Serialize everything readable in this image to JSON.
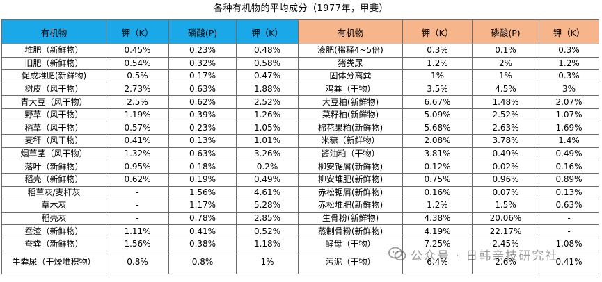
{
  "title": "各种有机物的平均成分（1977年，甲斐）",
  "headers": {
    "left": [
      "有机物",
      "钾（K）",
      "磷酸(P)",
      "钾（K）"
    ],
    "right": [
      "有机物",
      "钾（K）",
      "磷酸(P)",
      "钾（K）"
    ]
  },
  "rows": [
    {
      "l": [
        "堆肥（新鲜物）",
        "0.45%",
        "0.23%",
        "0.48%"
      ],
      "r": [
        "液肥(稀释4~5倍)",
        "0.3%",
        "0.1%",
        "0.3%"
      ]
    },
    {
      "l": [
        "旧肥（新鲜物）",
        "0.54%",
        "0.32%",
        "0.58%"
      ],
      "r": [
        "猪粪尿",
        "1.2%",
        "2%",
        "1.2%"
      ]
    },
    {
      "l": [
        "促成堆肥(新鲜物)",
        "0.5%",
        "0.17%",
        "0.47%"
      ],
      "r": [
        "固体分离粪",
        "1%",
        "1%",
        "0.3%"
      ]
    },
    {
      "l": [
        "树皮（风干物）",
        "2.73%",
        "0.63%",
        "1.88%"
      ],
      "r": [
        "鸡粪（干物）",
        "3.5%",
        "4.5%",
        "3%"
      ]
    },
    {
      "l": [
        "青大豆（风干物）",
        "2.5%",
        "0.62%",
        "2.52%"
      ],
      "r": [
        "大豆粕(新鲜物)",
        "6.67%",
        "1.48%",
        "2.07%"
      ]
    },
    {
      "l": [
        "野草（风干物）",
        "1.19%",
        "0.39%",
        "1.26%"
      ],
      "r": [
        "菜籽粕(新鲜物)",
        "5.09%",
        "2.52%",
        "1.07%"
      ]
    },
    {
      "l": [
        "稻草（风干物）",
        "0.57%",
        "0.23%",
        "1.05%"
      ],
      "r": [
        "棉花果粕(新鲜物)",
        "5.68%",
        "2.63%",
        "1.69%"
      ]
    },
    {
      "l": [
        "麦秆（风干物）",
        "0.41%",
        "0.13%",
        "1.01%"
      ],
      "r": [
        "米糠（新鲜物）",
        "2.08%",
        "3.78%",
        "1.4%"
      ]
    },
    {
      "l": [
        "烟草茎（风干物）",
        "1.32%",
        "0.63%",
        "3.26%"
      ],
      "r": [
        "酱油粕（干物）",
        "3.81%",
        "0.49%",
        "0.49%"
      ]
    },
    {
      "l": [
        "落叶（新鲜物）",
        "0.95%",
        "0.18%",
        "0.2%"
      ],
      "r": [
        "柳安锯屑(新鲜物)",
        "0.12%",
        "0.02%",
        "0.16%"
      ]
    },
    {
      "l": [
        "稻壳（新鲜物）",
        "0.62%",
        "0.19%",
        "0.49%"
      ],
      "r": [
        "柳安堆肥(新鲜物)",
        "0.75%",
        "0.96%",
        "0.89%"
      ]
    },
    {
      "l": [
        "稻草灰/麦杆灰",
        "-",
        "1.56%",
        "4.61%"
      ],
      "r": [
        "赤松锯屑(新鲜物)",
        "0.16%",
        "0.07%",
        "0.13%"
      ]
    },
    {
      "l": [
        "草木灰",
        "-",
        "1.17%",
        "5.28%"
      ],
      "r": [
        "赤松堆肥(新鲜物)",
        "1.2%",
        "1.5%",
        "0.63%"
      ]
    },
    {
      "l": [
        "稻壳灰",
        "-",
        "0.78%",
        "2.85%"
      ],
      "r": [
        "生骨粉(新鲜物)",
        "4.38%",
        "20.06%",
        "-"
      ]
    },
    {
      "l": [
        "蚕渣（新鲜物）",
        "1.11%",
        "0.41%",
        "0.52%"
      ],
      "r": [
        "蒸制骨粉(新鲜物)",
        "4.19%",
        "22.17%",
        "-"
      ]
    },
    {
      "l": [
        "蚕粪（新鲜物）",
        "1.56%",
        "0.38%",
        "1.18%"
      ],
      "r": [
        "酵母（干物）",
        "7.25%",
        "2.45%",
        "1.08%"
      ]
    },
    {
      "l": [
        "牛粪尿（干燥堆积物）",
        "0.8%",
        "0.8%",
        "1%"
      ],
      "r": [
        "污泥（干物）",
        "6.4%",
        "2.6%",
        "0.41%"
      ]
    }
  ],
  "watermark": {
    "text": "公众号 · 日韩亲技研究社",
    "icon": "wechat-official-account-icon"
  }
}
